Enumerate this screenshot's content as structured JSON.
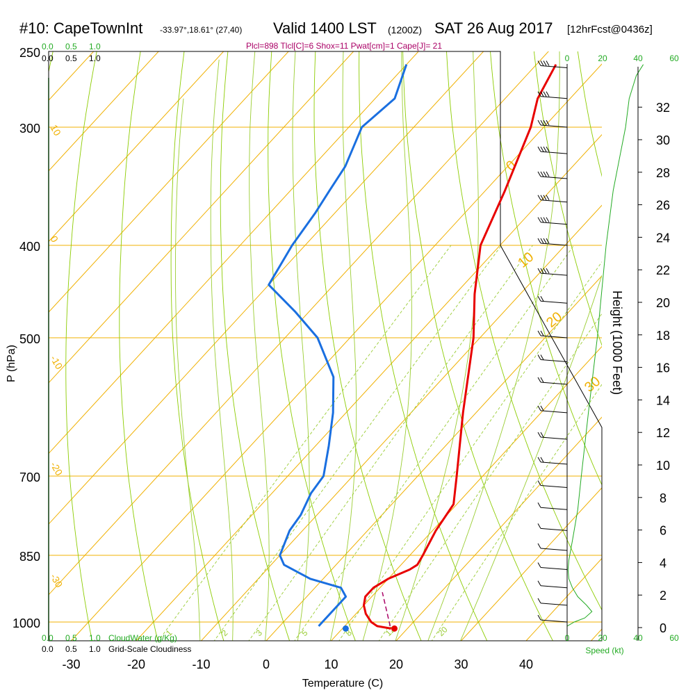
{
  "header": {
    "station": "#10: CapeTownInt",
    "coords": "-33.97°,18.61° (27,40)",
    "valid": "Valid 1400 LST",
    "zulu": "(1200Z)",
    "date": "SAT 26 Aug 2017",
    "forecast": "[12hrFcst@0436z]"
  },
  "indices": "Plcl=898 Tlcl[C]=6 Shox=11 Pwat[cm]=1 Cape[J]= 21",
  "colors": {
    "temperature": "#e80000",
    "dewpoint": "#1a6fe0",
    "isotherm": "#f0b000",
    "dry_adiabat": "#8ccc00",
    "moist_adiabat": "#9acd32",
    "mixing_ratio": "#99cc33",
    "cloud": "#22aa22",
    "purple": "#aa0066"
  },
  "cloud_scale": {
    "top_green": [
      "0.0",
      "0.5",
      "1.0"
    ],
    "top_black": [
      "0.0",
      "0.5",
      "1.0"
    ],
    "bottom_green": [
      "0.0",
      "0.5",
      "1.0"
    ],
    "bottom_black": [
      "0.0",
      "0.5",
      "1.0"
    ],
    "cloudwater_label": "CloudWater (g/Kg)",
    "cloudiness_label": "Grid-Scale Cloudiness"
  },
  "speed_scale": {
    "top": [
      "0",
      "20",
      "40",
      "60"
    ],
    "bottom": [
      "0",
      "20",
      "40",
      "60"
    ],
    "label": "Speed (kt)"
  },
  "chart_data": {
    "type": "skew-t",
    "title": "#10: CapeTownInt Valid 1400 LST (1200Z) SAT 26 Aug 2017",
    "xlabel": "Temperature (C)",
    "ylabel": "P (hPa)",
    "y2label": "Height (1000 Feet)",
    "x_ticks": [
      "-30",
      "-20",
      "-10",
      "0",
      "10",
      "20",
      "30",
      "40"
    ],
    "p_ticks": [
      "250",
      "300",
      "400",
      "500",
      "700",
      "850",
      "1000"
    ],
    "p_tick_values": [
      250,
      300,
      400,
      500,
      700,
      850,
      1000
    ],
    "height_ticks": [
      "0",
      "2",
      "4",
      "6",
      "8",
      "10",
      "12",
      "14",
      "16",
      "18",
      "20",
      "22",
      "24",
      "26",
      "28",
      "30",
      "32"
    ],
    "isotherm_labels": [
      {
        "text": "10",
        "t": 10
      },
      {
        "text": "0",
        "t": 0
      },
      {
        "text": "-10",
        "t": -10
      },
      {
        "text": "-20",
        "t": -20
      },
      {
        "text": "-30",
        "t": -30
      }
    ],
    "right_isotherm_labels": [
      {
        "text": "0",
        "t": 0
      },
      {
        "text": "10",
        "t": 10
      },
      {
        "text": "20",
        "t": 20
      },
      {
        "text": "30",
        "t": 30
      }
    ],
    "mixing_ratio_labels": [
      "1",
      "2",
      "3",
      "5",
      "8",
      "12",
      "20"
    ],
    "temperature": {
      "name": "Temperature",
      "points": [
        [
          258,
          -37
        ],
        [
          280,
          -35
        ],
        [
          300,
          -32
        ],
        [
          350,
          -27
        ],
        [
          400,
          -23
        ],
        [
          450,
          -17
        ],
        [
          500,
          -11
        ],
        [
          600,
          -2
        ],
        [
          700,
          6
        ],
        [
          750,
          9.5
        ],
        [
          800,
          10.5
        ],
        [
          850,
          12
        ],
        [
          870,
          12.5
        ],
        [
          880,
          12
        ],
        [
          900,
          10
        ],
        [
          920,
          9
        ],
        [
          940,
          9
        ],
        [
          960,
          10
        ],
        [
          980,
          11.5
        ],
        [
          1000,
          13.5
        ],
        [
          1010,
          15
        ],
        [
          1016,
          17.5
        ]
      ]
    },
    "dewpoint": {
      "name": "Dewpoint",
      "points": [
        [
          258,
          -60
        ],
        [
          280,
          -57
        ],
        [
          300,
          -58
        ],
        [
          330,
          -55
        ],
        [
          350,
          -54
        ],
        [
          370,
          -53
        ],
        [
          400,
          -52
        ],
        [
          440,
          -50
        ],
        [
          470,
          -42
        ],
        [
          500,
          -35
        ],
        [
          550,
          -27
        ],
        [
          600,
          -22
        ],
        [
          650,
          -18
        ],
        [
          700,
          -14.5
        ],
        [
          730,
          -14
        ],
        [
          770,
          -12.5
        ],
        [
          800,
          -12
        ],
        [
          850,
          -10
        ],
        [
          870,
          -8
        ],
        [
          900,
          -2
        ],
        [
          920,
          4
        ],
        [
          940,
          6
        ],
        [
          1000,
          6
        ],
        [
          1010,
          6
        ]
      ]
    },
    "surface_temp": 18,
    "surface_dewpoint": 10.5,
    "parcel_path": [
      [
        1010,
        17
      ],
      [
        930,
        11
      ]
    ],
    "wind_speed_profile": {
      "name": "Wind speed (kt)",
      "points": [
        [
          1010,
          0
        ],
        [
          1000,
          4
        ],
        [
          990,
          10
        ],
        [
          975,
          14
        ],
        [
          960,
          11
        ],
        [
          940,
          6
        ],
        [
          920,
          3
        ],
        [
          900,
          1
        ],
        [
          880,
          0.5
        ],
        [
          860,
          1
        ],
        [
          820,
          3
        ],
        [
          760,
          6
        ],
        [
          700,
          8
        ],
        [
          600,
          12
        ],
        [
          500,
          17
        ],
        [
          400,
          22
        ],
        [
          350,
          26
        ],
        [
          300,
          33
        ],
        [
          280,
          35
        ],
        [
          265,
          39
        ],
        [
          258,
          43
        ]
      ]
    }
  }
}
